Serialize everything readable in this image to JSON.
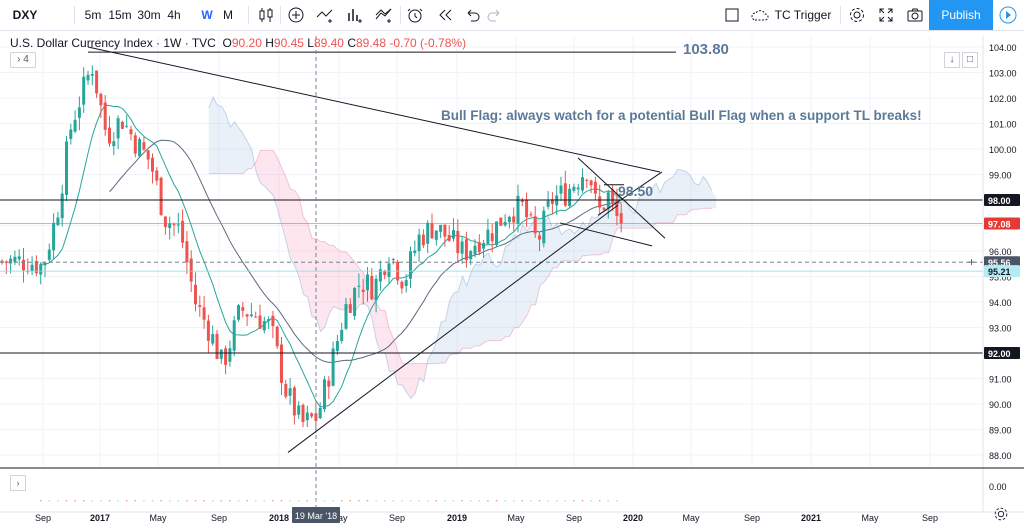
{
  "toolbar": {
    "symbol": "DXY",
    "intervals": [
      "5m",
      "15m",
      "30m",
      "4h",
      "W",
      "M"
    ],
    "active_interval": "W",
    "alert_label": "TC Trigger",
    "publish_label": "Publish"
  },
  "legend": {
    "title": "U.S. Dollar Currency Index · 1W · TVC",
    "o_label": "O",
    "o": "90.20",
    "h_label": "H",
    "h": "90.45",
    "l_label": "L",
    "l": "89.40",
    "c_label": "C",
    "c": "89.48",
    "change": "-0.70 (-0.78%)",
    "indicators_count": "4"
  },
  "annotations": {
    "top_level": "103.80",
    "note": "Bull Flag: always watch for a potential Bull Flag when a support TL breaks!",
    "flag_level": "98.50"
  },
  "price_axis": {
    "ticks": [
      "104.00",
      "103.00",
      "102.00",
      "101.00",
      "100.00",
      "99.00",
      "98.00",
      "97.00",
      "96.00",
      "95.00",
      "94.00",
      "93.00",
      "92.00",
      "91.00",
      "90.00",
      "89.00",
      "88.00"
    ],
    "badges": [
      {
        "label": "98.00",
        "price": 98.0,
        "color": "#131722"
      },
      {
        "label": "97.08",
        "price": 97.08,
        "color": "#e53935"
      },
      {
        "label": "95.56",
        "price": 95.56,
        "color": "#4a5568"
      },
      {
        "label": "95.21",
        "price": 95.21,
        "color": "#b2ebf2"
      },
      {
        "label": "92.00",
        "price": 92.0,
        "color": "#131722"
      }
    ],
    "lower_pane_tick": "0.00"
  },
  "time_axis": {
    "labels": [
      "Sep",
      "2017",
      "May",
      "Sep",
      "2018",
      "May",
      "Sep",
      "2019",
      "May",
      "Sep",
      "2020",
      "May",
      "Sep",
      "2021",
      "May",
      "Sep"
    ],
    "crosshair_label": "19 Mar '18"
  },
  "chart_data": {
    "type": "candlestick",
    "symbol": "DXY",
    "interval": "1W",
    "ylim": [
      87.6,
      104.4
    ],
    "horizontal_levels": [
      103.8,
      98.0,
      92.0
    ],
    "ohlc_last": {
      "open": 90.2,
      "high": 90.45,
      "low": 89.4,
      "close": 89.48
    },
    "close_path": [
      [
        "2016-08-01",
        95.6
      ],
      [
        "2016-09-01",
        95.4
      ],
      [
        "2016-10-01",
        97.5
      ],
      [
        "2016-11-01",
        101.0
      ],
      [
        "2016-12-15",
        103.3
      ],
      [
        "2017-01-15",
        100.5
      ],
      [
        "2017-02-15",
        101.2
      ],
      [
        "2017-03-15",
        100.3
      ],
      [
        "2017-04-15",
        99.5
      ],
      [
        "2017-05-15",
        97.3
      ],
      [
        "2017-06-15",
        96.8
      ],
      [
        "2017-07-15",
        94.0
      ],
      [
        "2017-08-15",
        92.8
      ],
      [
        "2017-09-08",
        91.5
      ],
      [
        "2017-10-15",
        93.7
      ],
      [
        "2017-11-15",
        93.5
      ],
      [
        "2017-12-15",
        93.0
      ],
      [
        "2018-01-15",
        90.5
      ],
      [
        "2018-02-15",
        89.2
      ],
      [
        "2018-03-19",
        89.5
      ],
      [
        "2018-04-15",
        91.5
      ],
      [
        "2018-05-15",
        93.8
      ],
      [
        "2018-06-15",
        94.8
      ],
      [
        "2018-07-15",
        94.6
      ],
      [
        "2018-08-15",
        96.0
      ],
      [
        "2018-09-15",
        94.8
      ],
      [
        "2018-10-15",
        96.5
      ],
      [
        "2018-11-15",
        97.0
      ],
      [
        "2018-12-15",
        96.5
      ],
      [
        "2019-01-15",
        95.9
      ],
      [
        "2019-02-15",
        96.5
      ],
      [
        "2019-03-15",
        96.8
      ],
      [
        "2019-04-15",
        97.6
      ],
      [
        "2019-05-15",
        97.7
      ],
      [
        "2019-06-15",
        96.3
      ],
      [
        "2019-07-15",
        98.0
      ],
      [
        "2019-08-15",
        98.3
      ],
      [
        "2019-09-15",
        99.0
      ],
      [
        "2019-10-01",
        99.3
      ],
      [
        "2019-10-20",
        97.4
      ],
      [
        "2019-11-10",
        98.2
      ],
      [
        "2019-11-25",
        97.4
      ],
      [
        "2019-12-05",
        97.1
      ]
    ]
  }
}
